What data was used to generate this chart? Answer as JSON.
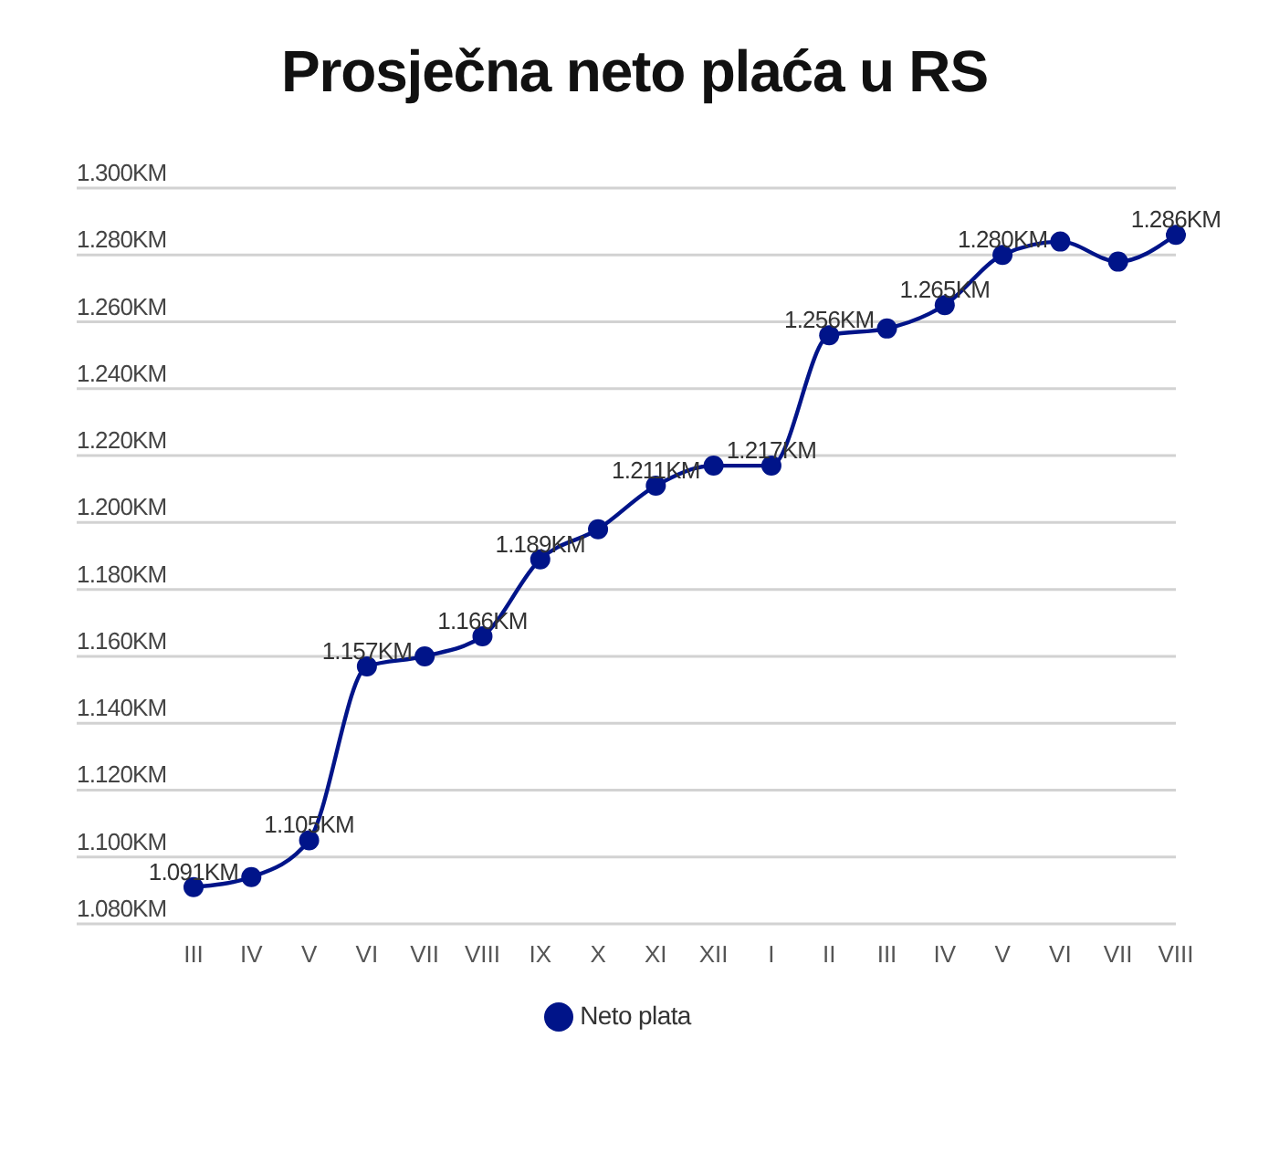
{
  "chart_data": {
    "type": "line",
    "title": "Prosječna neto plaća u RS",
    "categories": [
      "III",
      "IV",
      "V",
      "VI",
      "VII",
      "VIII",
      "IX",
      "X",
      "XI",
      "XII",
      "I",
      "II",
      "III",
      "IV",
      "V",
      "VI",
      "VII",
      "VIII"
    ],
    "series": [
      {
        "name": "Neto plata",
        "color": "#001489",
        "values": [
          1091,
          1094,
          1105,
          1157,
          1160,
          1166,
          1189,
          1198,
          1211,
          1217,
          1217,
          1256,
          1258,
          1265,
          1280,
          1284,
          1278,
          1286
        ],
        "value_labels": [
          "1.091KM",
          null,
          "1.105KM",
          "1.157KM",
          null,
          "1.166KM",
          "1.189KM",
          null,
          "1.211KM",
          null,
          "1.217KM",
          "1.256KM",
          null,
          "1.265KM",
          "1.280KM",
          null,
          null,
          "1.286KM"
        ]
      }
    ],
    "ylim": [
      1080,
      1300
    ],
    "yticks": [
      {
        "value": 1080,
        "label": "1.080KM"
      },
      {
        "value": 1100,
        "label": "1.100KM"
      },
      {
        "value": 1120,
        "label": "1.120KM"
      },
      {
        "value": 1140,
        "label": "1.140KM"
      },
      {
        "value": 1160,
        "label": "1.160KM"
      },
      {
        "value": 1180,
        "label": "1.180KM"
      },
      {
        "value": 1200,
        "label": "1.200KM"
      },
      {
        "value": 1220,
        "label": "1.220KM"
      },
      {
        "value": 1240,
        "label": "1.240KM"
      },
      {
        "value": 1260,
        "label": "1.260KM"
      },
      {
        "value": 1280,
        "label": "1.280KM"
      },
      {
        "value": 1300,
        "label": "1.300KM"
      }
    ],
    "grid": "y",
    "legend": "bottom",
    "marker": "circle",
    "line_style": "solid"
  }
}
